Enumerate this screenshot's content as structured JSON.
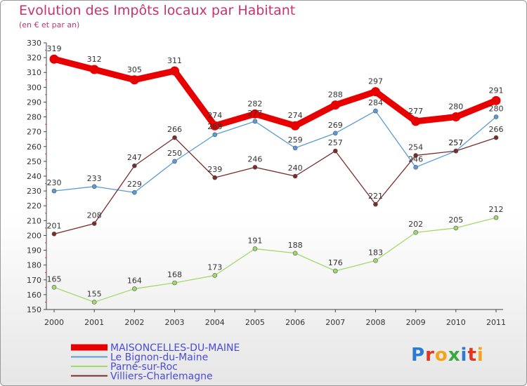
{
  "title": "Evolution des Impôts locaux par Habitant",
  "subtitle": "(en € et par an)",
  "logo": {
    "text": "Proxiti",
    "letters": [
      {
        "ch": "P",
        "color": "#2b7bd0"
      },
      {
        "ch": "r",
        "color": "#e0351f"
      },
      {
        "ch": "o",
        "color": "#f2a41a"
      },
      {
        "ch": "x",
        "color": "#3aa83c"
      },
      {
        "ch": "i",
        "color": "#2b7bd0"
      },
      {
        "ch": "t",
        "color": "#e0351f"
      },
      {
        "ch": "i",
        "color": "#f2a41a"
      }
    ]
  },
  "chart_data": {
    "type": "line",
    "title": "Evolution des Impôts locaux par Habitant",
    "subtitle": "(en € et par an)",
    "xlabel": "",
    "ylabel": "",
    "x": [
      "2000",
      "2001",
      "2002",
      "2003",
      "2004",
      "2005",
      "2006",
      "2007",
      "2008",
      "2009",
      "2010",
      "2011"
    ],
    "ylim": [
      150,
      330
    ],
    "yticks": [
      150,
      160,
      170,
      180,
      190,
      200,
      210,
      220,
      230,
      240,
      250,
      260,
      270,
      280,
      290,
      300,
      310,
      320,
      330
    ],
    "grid": false,
    "legend_position": "bottom-left",
    "series": [
      {
        "name": "MAISONCELLES-DU-MAINE",
        "color": "#e80000",
        "values": [
          319,
          312,
          305,
          311,
          274,
          282,
          274,
          288,
          297,
          277,
          280,
          291
        ]
      },
      {
        "name": "Le Bignon-du-Maine",
        "color": "#5a9bd5",
        "values": [
          230,
          233,
          229,
          250,
          268,
          277,
          259,
          269,
          284,
          246,
          257,
          280
        ]
      },
      {
        "name": "Parné-sur-Roc",
        "color": "#a3d86e",
        "values": [
          165,
          155,
          164,
          168,
          173,
          191,
          188,
          176,
          183,
          202,
          205,
          212
        ]
      },
      {
        "name": "Villiers-Charlemagne",
        "color": "#7a2c2c",
        "values": [
          201,
          208,
          247,
          266,
          239,
          246,
          240,
          257,
          221,
          254,
          257,
          266
        ]
      }
    ],
    "data_labels": [
      [
        319,
        312,
        305,
        311,
        274,
        282,
        274,
        288,
        297,
        277,
        280,
        291
      ],
      [
        230,
        233,
        229,
        250,
        268,
        277,
        259,
        269,
        284,
        246,
        257,
        280
      ],
      [
        165,
        155,
        164,
        168,
        173,
        191,
        188,
        176,
        183,
        202,
        205,
        212
      ],
      [
        201,
        208,
        247,
        266,
        239,
        246,
        240,
        257,
        221,
        254,
        257,
        266
      ]
    ]
  }
}
